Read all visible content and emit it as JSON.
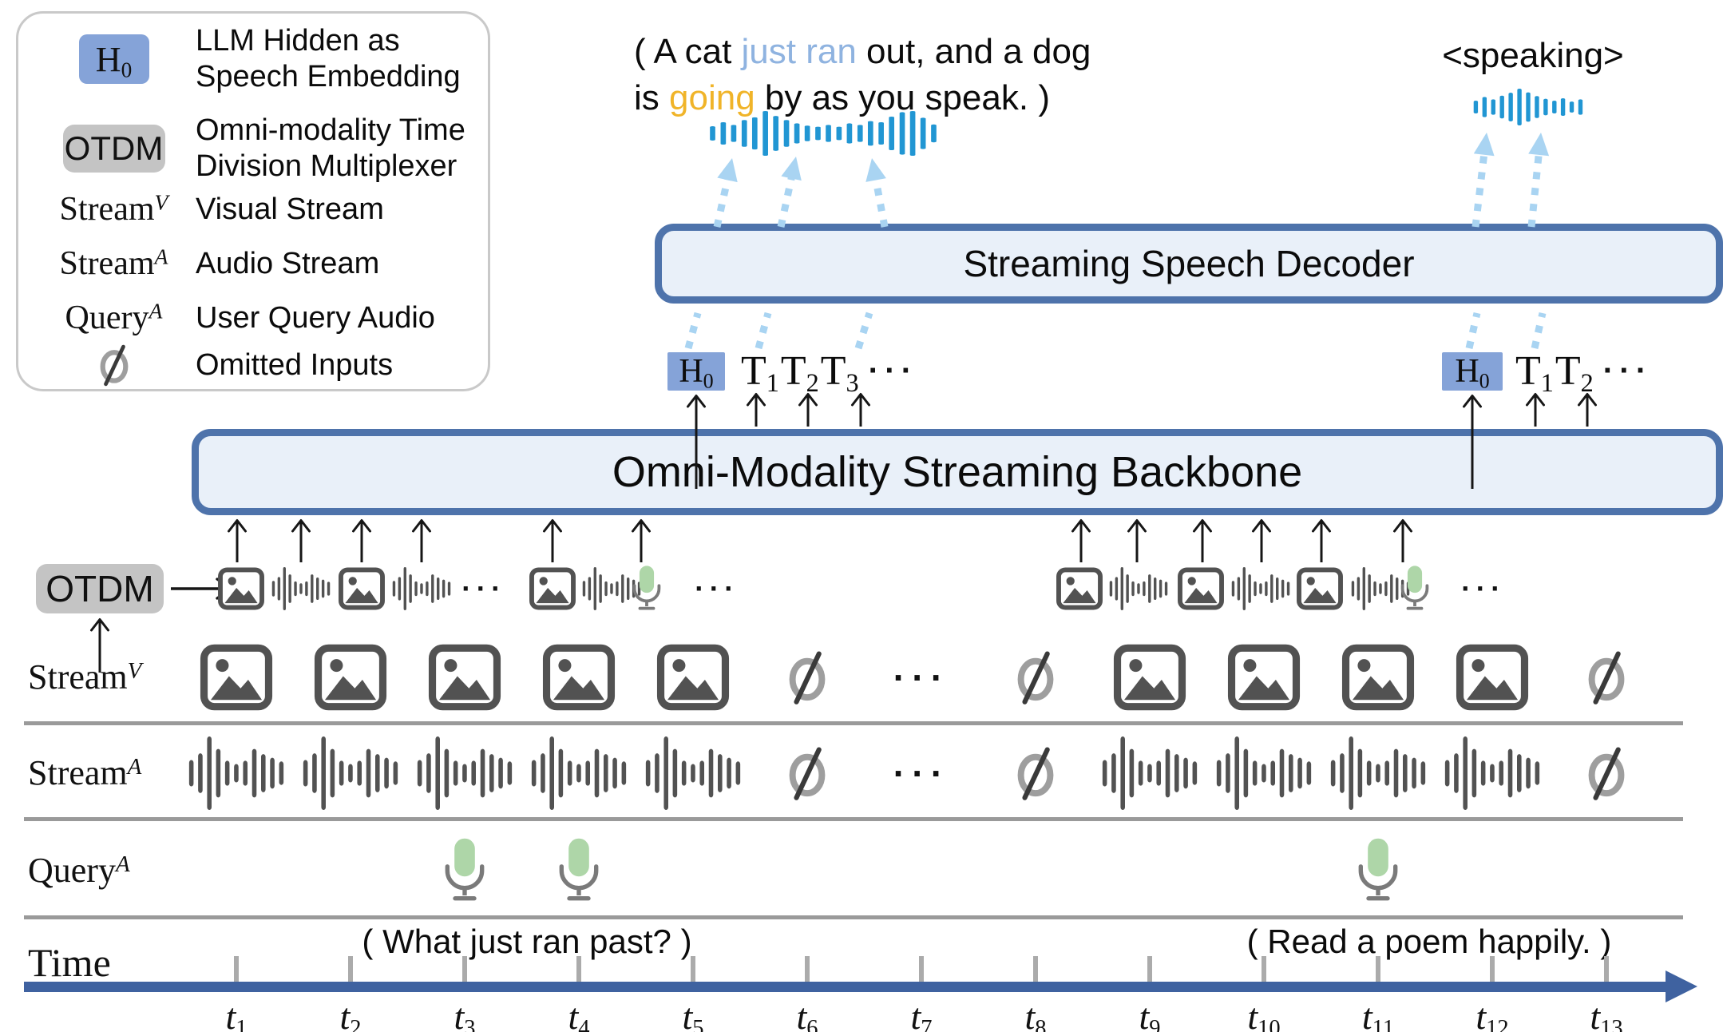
{
  "colors": {
    "box_border": "#4e73ab",
    "box_fill": "#e9f0f9",
    "h0_chip": "#85a3d8",
    "otdm_chip": "#c4c4c4",
    "speech_wave_blue": "#2196d3",
    "dashed_arrow_blue": "#a9d4f2",
    "highlight_blue": "#8fb3e0",
    "highlight_orange": "#f0b429",
    "timeline_blue": "#3f62a0",
    "mic_green": "#aed6a8",
    "icon_gray": "#525252",
    "null_ring_gray": "#9e9e9e",
    "separator_gray": "#9a9a9a",
    "legend_border": "#c9c9c9"
  },
  "legend": {
    "items": [
      {
        "symbol": "H",
        "symbol_sub": "0",
        "lines": [
          "LLM Hidden as",
          "Speech Embedding"
        ]
      },
      {
        "symbol": "OTDM",
        "lines": [
          "Omni-modality Time",
          "Division Multiplexer"
        ]
      },
      {
        "symbol": "Stream",
        "symbol_sup": "V",
        "lines": [
          "Visual Stream"
        ]
      },
      {
        "symbol": "Stream",
        "symbol_sup": "A",
        "lines": [
          "Audio Stream"
        ]
      },
      {
        "symbol": "Query",
        "symbol_sup": "A",
        "lines": [
          "User Query Audio"
        ]
      },
      {
        "symbol": "∅",
        "lines": [
          "Omitted Inputs"
        ]
      }
    ]
  },
  "speech_left": {
    "line1": [
      {
        "text": "( A cat ",
        "color": "black"
      },
      {
        "text": "just ran",
        "color": "blue"
      },
      {
        "text": " out, and a dog",
        "color": "black"
      }
    ],
    "line2": [
      {
        "text": "is ",
        "color": "black"
      },
      {
        "text": "going",
        "color": "orange"
      },
      {
        "text": " by as you speak. )",
        "color": "black"
      }
    ]
  },
  "speech_right": {
    "text": "<speaking>"
  },
  "decoder": {
    "label": "Streaming Speech Decoder"
  },
  "backbone": {
    "label": "Omni-Modality Streaming Backbone"
  },
  "tokens_left": {
    "h0": {
      "base": "H",
      "sub": "0"
    },
    "ts": [
      {
        "base": "T",
        "sub": "1"
      },
      {
        "base": "T",
        "sub": "2"
      },
      {
        "base": "T",
        "sub": "3"
      }
    ],
    "ellipsis": "···"
  },
  "tokens_right": {
    "h0": {
      "base": "H",
      "sub": "0"
    },
    "ts": [
      {
        "base": "T",
        "sub": "1"
      },
      {
        "base": "T",
        "sub": "2"
      }
    ],
    "ellipsis": "···"
  },
  "otdm": {
    "chip": "OTDM",
    "left_sequence": [
      "image",
      "audio",
      "image",
      "audio",
      "dots",
      "image",
      "audio",
      "mic",
      "dots"
    ],
    "right_sequence": [
      "image",
      "audio",
      "image",
      "audio",
      "image",
      "audio",
      "mic",
      "dots"
    ]
  },
  "rows": {
    "stream_v": {
      "label": "Stream",
      "sup": "V",
      "cells": [
        "image",
        "image",
        "image",
        "image",
        "image",
        "null",
        "dots",
        "null",
        "image",
        "image",
        "image",
        "image",
        "null"
      ]
    },
    "stream_a": {
      "label": "Stream",
      "sup": "A",
      "cells": [
        "audio",
        "audio",
        "audio",
        "audio",
        "audio",
        "null",
        "dots",
        "null",
        "audio",
        "audio",
        "audio",
        "audio",
        "null"
      ]
    },
    "query_a": {
      "label": "Query",
      "sup": "A",
      "cells": [
        "",
        "",
        "mic",
        "mic",
        "",
        "",
        "",
        "",
        "",
        "",
        "mic",
        "",
        ""
      ]
    },
    "time_label": "Time"
  },
  "queries": {
    "left": "( What just ran past? )",
    "right": "( Read a poem happily. )"
  },
  "timeline": {
    "ticks": [
      {
        "base": "t",
        "sub": "1"
      },
      {
        "base": "t",
        "sub": "2"
      },
      {
        "base": "t",
        "sub": "3"
      },
      {
        "base": "t",
        "sub": "4"
      },
      {
        "base": "t",
        "sub": "5"
      },
      {
        "base": "t",
        "sub": "6"
      },
      {
        "base": "t",
        "sub": "7"
      },
      {
        "base": "t",
        "sub": "8"
      },
      {
        "base": "t",
        "sub": "9"
      },
      {
        "base": "t",
        "sub": "10"
      },
      {
        "base": "t",
        "sub": "11"
      },
      {
        "base": "t",
        "sub": "12"
      },
      {
        "base": "t",
        "sub": "13"
      }
    ]
  }
}
